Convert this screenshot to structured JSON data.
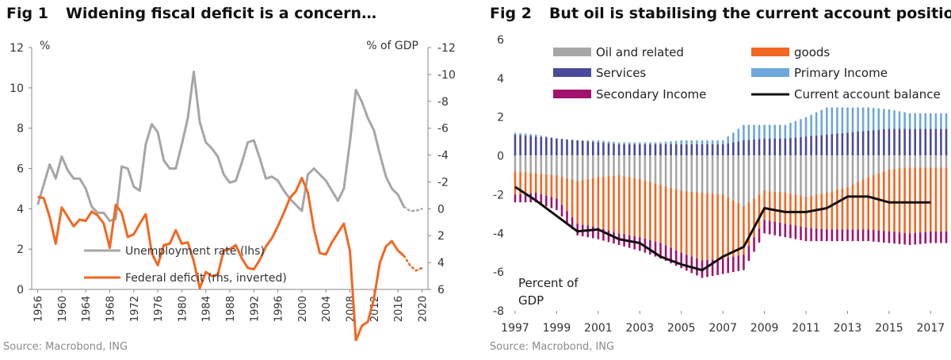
{
  "colors": {
    "unemployment": "#a6a6a6",
    "deficit": "#f26722",
    "oil": "#a6a6a6",
    "goods": "#f26722",
    "services": "#4a4a9a",
    "primary": "#6ea8dc",
    "secondary": "#a0126e",
    "balance": "#111111"
  },
  "fig1": {
    "fig_label": "Fig 1",
    "title": "Widening fiscal deficit is a concern…",
    "source": "Source: Macrobond, ING",
    "chart_data": {
      "type": "line",
      "title": "Widening fiscal deficit is a concern…",
      "ylabel_left": "%",
      "ylabel_right": "% of GDP",
      "ylim_left": [
        0,
        12
      ],
      "ylim_right_inverted": [
        6,
        -12
      ],
      "yticks_left": [
        "0",
        "2",
        "4",
        "6",
        "8",
        "10",
        "12"
      ],
      "yticks_right": [
        "6",
        "4",
        "2",
        "0",
        "-2",
        "-4",
        "-6",
        "-8",
        "-10",
        "-12"
      ],
      "xlim": [
        1955,
        2021
      ],
      "xticks": [
        "1956",
        "1960",
        "1964",
        "1968",
        "1972",
        "1976",
        "1980",
        "1984",
        "1988",
        "1992",
        "1996",
        "2000",
        "2004",
        "2008",
        "2012",
        "2016",
        "2020"
      ],
      "legend_position": "bottom-left",
      "series": [
        {
          "name": "Unemployment rate (lhs)",
          "axis": "left",
          "x": [
            1956,
            1957,
            1958,
            1959,
            1960,
            1961,
            1962,
            1963,
            1964,
            1965,
            1966,
            1967,
            1968,
            1969,
            1970,
            1971,
            1972,
            1973,
            1974,
            1975,
            1976,
            1977,
            1978,
            1979,
            1980,
            1981,
            1982,
            1983,
            1984,
            1985,
            1986,
            1987,
            1988,
            1989,
            1990,
            1991,
            1992,
            1993,
            1994,
            1995,
            1996,
            1997,
            1998,
            1999,
            2000,
            2001,
            2002,
            2003,
            2004,
            2005,
            2006,
            2007,
            2008,
            2009,
            2010,
            2011,
            2012,
            2013,
            2014,
            2015,
            2016,
            2017
          ],
          "y": [
            4.2,
            5.2,
            6.2,
            5.5,
            6.6,
            5.9,
            5.5,
            5.5,
            5.0,
            4.1,
            3.8,
            3.8,
            3.4,
            3.5,
            6.1,
            6.0,
            5.1,
            4.9,
            7.2,
            8.2,
            7.8,
            6.4,
            6.0,
            6.0,
            7.2,
            8.5,
            10.8,
            8.3,
            7.3,
            7.0,
            6.6,
            5.7,
            5.3,
            5.4,
            6.3,
            7.3,
            7.4,
            6.5,
            5.5,
            5.6,
            5.4,
            4.9,
            4.5,
            4.2,
            3.9,
            5.7,
            6.0,
            5.7,
            5.4,
            4.9,
            4.4,
            5.0,
            7.3,
            9.9,
            9.3,
            8.5,
            7.9,
            6.7,
            5.6,
            5.0,
            4.7,
            4.1
          ],
          "projection_x": [
            2017,
            2018,
            2019,
            2020
          ],
          "projection_y": [
            4.1,
            3.9,
            3.9,
            4.0
          ]
        },
        {
          "name": "Federal deficit (rhs, inverted)",
          "axis": "right",
          "x": [
            1956,
            1957,
            1958,
            1959,
            1960,
            1961,
            1962,
            1963,
            1964,
            1965,
            1966,
            1967,
            1968,
            1969,
            1970,
            1971,
            1972,
            1973,
            1974,
            1975,
            1976,
            1977,
            1978,
            1979,
            1980,
            1981,
            1982,
            1983,
            1984,
            1985,
            1986,
            1987,
            1988,
            1989,
            1990,
            1991,
            1992,
            1993,
            1994,
            1995,
            1996,
            1997,
            1998,
            1999,
            2000,
            2001,
            2002,
            2003,
            2004,
            2005,
            2006,
            2007,
            2008,
            2009,
            2010,
            2011,
            2012,
            2013,
            2014,
            2015,
            2016,
            2017
          ],
          "y": [
            -0.9,
            -0.8,
            0.6,
            2.6,
            -0.1,
            0.6,
            1.3,
            0.8,
            0.9,
            0.2,
            0.5,
            1.1,
            2.9,
            -0.3,
            0.3,
            2.1,
            1.9,
            1.1,
            0.4,
            3.3,
            4.2,
            2.7,
            2.6,
            1.6,
            2.6,
            2.5,
            3.9,
            5.9,
            4.7,
            5.0,
            4.9,
            3.1,
            3.0,
            2.7,
            3.7,
            4.4,
            4.5,
            3.8,
            2.8,
            2.2,
            1.3,
            0.3,
            -0.8,
            -1.3,
            -2.3,
            -1.2,
            1.5,
            3.3,
            3.4,
            2.5,
            1.8,
            1.1,
            3.1,
            9.8,
            8.7,
            8.4,
            6.7,
            4.0,
            2.8,
            2.4,
            3.1,
            3.5
          ],
          "projection_x": [
            2017,
            2018,
            2019,
            2020
          ],
          "projection_y": [
            3.5,
            4.2,
            4.6,
            4.4
          ]
        }
      ]
    }
  },
  "fig2": {
    "fig_label": "Fig 2",
    "title": "But oil is stabilising the current account position",
    "source": "Source: Macrobond, ING",
    "chart_data": {
      "type": "bar",
      "stacked": true,
      "title": "But oil is stabilising the current account position",
      "ylabel": "Percent of GDP",
      "ylim": [
        -8,
        6
      ],
      "yticks": [
        "-8",
        "-6",
        "-4",
        "-2",
        "0",
        "2",
        "4",
        "6"
      ],
      "xlim": [
        1997,
        2017.75
      ],
      "xticks": [
        "1997",
        "1999",
        "2001",
        "2003",
        "2005",
        "2007",
        "2009",
        "2011",
        "2013",
        "2015",
        "2017"
      ],
      "legend_position": "top",
      "legend": {
        "oil": "Oil and related",
        "goods": "goods",
        "services": "Services",
        "primary": "Primary Income",
        "secondary": "Secondary Income",
        "balance": "Current account balance"
      },
      "x": [
        1997,
        1998,
        1999,
        2000,
        2001,
        2002,
        2003,
        2004,
        2005,
        2006,
        2007,
        2008,
        2009,
        2010,
        2011,
        2012,
        2013,
        2014,
        2015,
        2016,
        2017
      ],
      "series": [
        {
          "name": "Oil and related",
          "key": "oil",
          "values": [
            -0.8,
            -0.9,
            -1.0,
            -1.3,
            -1.1,
            -1.0,
            -1.2,
            -1.5,
            -1.8,
            -1.9,
            -2.0,
            -2.6,
            -1.8,
            -1.9,
            -2.1,
            -1.9,
            -1.6,
            -1.1,
            -0.7,
            -0.6,
            -0.6
          ]
        },
        {
          "name": "goods",
          "key": "goods",
          "values": [
            -1.2,
            -1.0,
            -1.2,
            -2.2,
            -2.6,
            -3.0,
            -3.0,
            -3.0,
            -3.2,
            -3.5,
            -3.3,
            -2.5,
            -1.5,
            -1.6,
            -1.6,
            -1.9,
            -2.2,
            -2.7,
            -3.2,
            -3.4,
            -3.3
          ]
        },
        {
          "name": "Services",
          "key": "services",
          "values": [
            1.1,
            1.0,
            0.9,
            0.8,
            0.7,
            0.6,
            0.6,
            0.6,
            0.6,
            0.6,
            0.6,
            0.8,
            0.9,
            0.9,
            1.0,
            1.1,
            1.2,
            1.3,
            1.4,
            1.4,
            1.4
          ]
        },
        {
          "name": "Primary Income",
          "key": "primary",
          "values": [
            0.1,
            0.1,
            0.0,
            0.0,
            0.1,
            0.1,
            0.1,
            0.1,
            0.2,
            0.2,
            0.2,
            0.8,
            0.7,
            0.7,
            1.0,
            1.4,
            1.3,
            1.2,
            1.0,
            0.8,
            0.8
          ]
        },
        {
          "name": "Secondary Income",
          "key": "secondary",
          "values": [
            -0.4,
            -0.5,
            -0.6,
            -0.6,
            -0.6,
            -0.6,
            -0.7,
            -0.8,
            -0.8,
            -0.9,
            -0.8,
            -0.8,
            -0.7,
            -0.7,
            -0.7,
            -0.6,
            -0.6,
            -0.6,
            -0.6,
            -0.6,
            -0.6
          ]
        },
        {
          "name": "Current account balance",
          "key": "balance",
          "type": "line",
          "values": [
            -1.6,
            -2.3,
            -3.1,
            -3.9,
            -3.8,
            -4.3,
            -4.5,
            -5.2,
            -5.6,
            -5.9,
            -5.2,
            -4.7,
            -2.7,
            -2.9,
            -2.9,
            -2.7,
            -2.1,
            -2.1,
            -2.4,
            -2.4,
            -2.4
          ]
        }
      ]
    }
  }
}
